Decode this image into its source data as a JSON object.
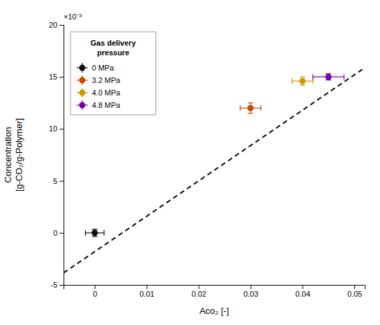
{
  "chart_data": {
    "type": "scatter",
    "x_label": "Aco₂ [-]",
    "y_label": "Concentration\n[g-CO₂/g-Polymer]",
    "annotations": [
      {
        "text": "×10⁻³"
      }
    ],
    "legend_title": "Gas delivery\npressure",
    "legend": "upper left",
    "grid": false,
    "xlim": [
      -0.006,
      0.052
    ],
    "ylim": [
      -5,
      20
    ],
    "xticks": [
      0,
      0.01,
      0.02,
      0.03,
      0.04,
      0.05
    ],
    "yticks": [
      -5,
      0,
      5,
      10,
      15,
      20
    ],
    "series": [
      {
        "type": "line",
        "line_style": "dashed",
        "color": "#111111",
        "x": [
          -0.006,
          0.052
        ],
        "values": [
          -3.84,
          15.88
        ]
      },
      {
        "name": "0 MPa",
        "type": "scatter",
        "marker": "circle",
        "color": "#111111",
        "x": [
          0.0
        ],
        "values": [
          0.0
        ],
        "x_error": [
          0.0018
        ],
        "error": [
          0.35
        ]
      },
      {
        "name": "3.2 MPa",
        "type": "scatter",
        "marker": "circle",
        "color": "#cc4400",
        "x": [
          0.03
        ],
        "values": [
          12.0
        ],
        "x_error": [
          0.002
        ],
        "error": [
          0.5
        ]
      },
      {
        "name": "4.0 MPa",
        "type": "scatter",
        "marker": "circle",
        "color": "#cc9900",
        "x": [
          0.04
        ],
        "values": [
          14.6
        ],
        "x_error": [
          0.002
        ],
        "error": [
          0.4
        ]
      },
      {
        "name": "4.8 MPa",
        "type": "scatter",
        "marker": "circle",
        "color": "#7700aa",
        "x": [
          0.045
        ],
        "values": [
          15.0
        ],
        "x_error": [
          0.003
        ],
        "error": [
          0.3
        ]
      }
    ]
  }
}
